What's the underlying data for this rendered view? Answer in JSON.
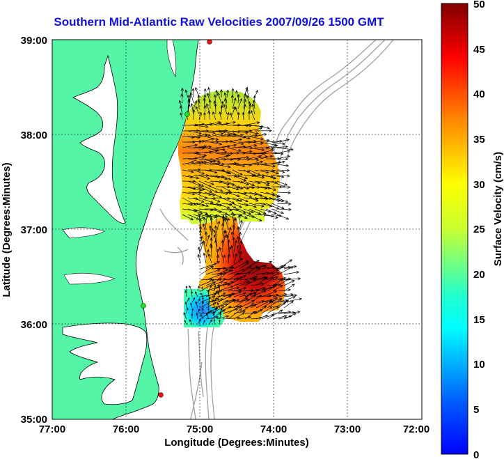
{
  "title": "Southern Mid-Atlantic Raw Velocities 2007/09/26 1500 GMT",
  "axes": {
    "xlabel": "Longitude (Degrees:Minutes)",
    "ylabel": "Latitude (Degrees:Minutes)",
    "xticks": [
      "77:00",
      "76:00",
      "75:00",
      "74:00",
      "73:00",
      "72:00"
    ],
    "yticks": [
      "39:00",
      "38:00",
      "37:00",
      "36:00",
      "35:00"
    ],
    "xlim_deg_west": [
      77,
      72
    ],
    "ylim_deg_north": [
      35,
      39
    ],
    "grid": "dotted"
  },
  "colorbar": {
    "label": "Surface Velocity (cm/s)",
    "ticks": [
      "50",
      "45",
      "40",
      "35",
      "30",
      "25",
      "20",
      "15",
      "10",
      "5",
      "0"
    ],
    "range": [
      0,
      50
    ],
    "colormap": "jet"
  },
  "colors": {
    "land": "#55f5a8",
    "title": "#1010e0",
    "bathymetry": "#a0a0a0",
    "station_green": "#22dd22",
    "station_red": "#ee1111"
  },
  "chart_data": {
    "type": "heatmap",
    "field": "surface current velocity",
    "units": "cm/s",
    "regions": [
      {
        "name": "north",
        "lat_range": [
          37.0,
          38.5
        ],
        "lon_range": [
          75.3,
          74.0
        ],
        "speed_range": [
          25,
          40
        ]
      },
      {
        "name": "south",
        "lat_range": [
          36.0,
          36.9
        ],
        "lon_range": [
          75.2,
          74.1
        ],
        "speed_range": [
          10,
          50
        ]
      }
    ],
    "stations": [
      {
        "lon": 74.85,
        "lat": 39.0,
        "color": "red"
      },
      {
        "lon": 75.15,
        "lat": 38.22,
        "color": "green"
      },
      {
        "lon": 75.75,
        "lat": 36.2,
        "color": "green"
      },
      {
        "lon": 75.55,
        "lat": 35.27,
        "color": "red"
      }
    ]
  }
}
